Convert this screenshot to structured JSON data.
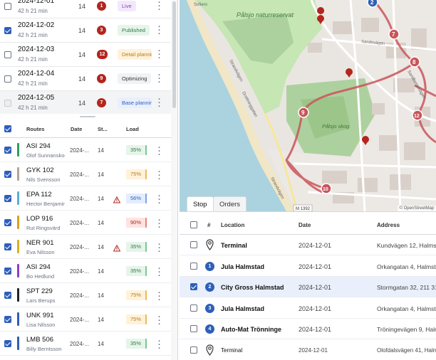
{
  "plans": [
    {
      "date": "2024-12-01",
      "duration": "42 h 21 min",
      "count": "14",
      "badge": "1",
      "status": "Live",
      "status_kind": "live",
      "checked": false,
      "disabled": false
    },
    {
      "date": "2024-12-02",
      "duration": "42 h 21 min",
      "count": "14",
      "badge": "3",
      "status": "Published",
      "status_kind": "pub",
      "checked": true,
      "disabled": false
    },
    {
      "date": "2024-12-03",
      "duration": "42 h 21 min",
      "count": "14",
      "badge": "12",
      "status": "Detail planning",
      "status_kind": "detail",
      "checked": false,
      "disabled": false
    },
    {
      "date": "2024-12-04",
      "duration": "42 h 21 min",
      "count": "14",
      "badge": "9",
      "status": "Optimizing",
      "status_kind": "opt",
      "checked": false,
      "disabled": false
    },
    {
      "date": "2024-12-05",
      "duration": "42 h 21 min",
      "count": "14",
      "badge": "7",
      "status": "Base planning",
      "status_kind": "base",
      "checked": false,
      "disabled": true
    }
  ],
  "routes_header": {
    "routes": "Routes",
    "date": "Date",
    "stops": "St...",
    "load": "Load"
  },
  "routes": [
    {
      "name": "ASI 294",
      "driver": "Olof Sunnanskog",
      "date": "2024-12-01",
      "stops": "14",
      "load": "35%",
      "load_kind": "green",
      "color": "#2e9e5b",
      "warning": false
    },
    {
      "name": "GYK 102",
      "driver": "Nils Svensson",
      "date": "2024-12-01",
      "stops": "14",
      "load": "75%",
      "load_kind": "amber",
      "color": "#b0a49a",
      "warning": false
    },
    {
      "name": "EPA 112",
      "driver": "Hector Benjaminsson",
      "date": "2024-12-01",
      "stops": "14",
      "load": "56%",
      "load_kind": "blue",
      "color": "#5aaed8",
      "warning": true
    },
    {
      "name": "LOP 916",
      "driver": "Rut Ringsvärd",
      "date": "2024-12-01",
      "stops": "14",
      "load": "90%",
      "load_kind": "red",
      "color": "#d6a21e",
      "warning": false
    },
    {
      "name": "NER 901",
      "driver": "Eva Nilsson",
      "date": "2024-12-01",
      "stops": "14",
      "load": "35%",
      "load_kind": "green",
      "color": "#d8b21e",
      "warning": true
    },
    {
      "name": "ASI 294",
      "driver": "Bo Hedlund",
      "date": "2024-12-01",
      "stops": "14",
      "load": "35%",
      "load_kind": "green",
      "color": "#8a3fc9",
      "warning": false
    },
    {
      "name": "SPT 229",
      "driver": "Lars Berups",
      "date": "2024-12-01",
      "stops": "14",
      "load": "75%",
      "load_kind": "amber",
      "color": "#1f2328",
      "warning": false
    },
    {
      "name": "UNK 991",
      "driver": "Lisa Nilsson",
      "date": "2024-12-01",
      "stops": "14",
      "load": "75%",
      "load_kind": "amber",
      "color": "#2f5fb8",
      "warning": false
    },
    {
      "name": "LMB 506",
      "driver": "Billy Berntsson",
      "date": "2024-12-01",
      "stops": "14",
      "load": "35%",
      "load_kind": "green",
      "color": "#2f5fb8",
      "warning": false
    }
  ],
  "map": {
    "labels": {
      "reserve": "Pålsjo naturreservat",
      "forest": "Pålsjo skog",
      "road1": "Strandvägen",
      "road2": "Drottninggatan",
      "road3": "Sandsvägen",
      "road4": "Strandvägen",
      "road5": "Sandbergsvägen",
      "road6": "Sofiero"
    },
    "shields": {
      "a": "M 1392",
      "b": "M 1392"
    },
    "markers": [
      "2",
      "7",
      "8",
      "9",
      "10",
      "12"
    ],
    "attribution": "© OpenStreetMap"
  },
  "tabs": [
    {
      "label": "Stop",
      "active": true
    },
    {
      "label": "Orders",
      "active": false
    }
  ],
  "stops_header": {
    "num": "#",
    "location": "Location",
    "date": "Date",
    "address": "Address"
  },
  "stops": [
    {
      "type": "pin",
      "num": "",
      "location": "Terminal",
      "date": "2024-12-01",
      "address": "Kundvägen 12, Halmstad",
      "selected": false,
      "checked": false
    },
    {
      "type": "num",
      "num": "1",
      "location": "Jula Halmstad",
      "date": "2024-12-01",
      "address": "Orkangatan 4, Halmstad",
      "selected": false,
      "checked": false
    },
    {
      "type": "num",
      "num": "2",
      "location": "City Gross Halmstad",
      "date": "2024-12-01",
      "address": "Stormgatan 32, 211 31",
      "selected": true,
      "checked": true
    },
    {
      "type": "num",
      "num": "3",
      "location": "Jula Halmstad",
      "date": "2024-12-01",
      "address": "Orkangatan 4, Halmstad",
      "selected": false,
      "checked": false
    },
    {
      "type": "num",
      "num": "4",
      "location": "Auto-Mat Trönninge",
      "date": "2024-12-01",
      "address": "Tröningevägen 9, Halmstad",
      "selected": false,
      "checked": false
    },
    {
      "type": "pin",
      "num": "",
      "location": "Terminal",
      "date": "2024-12-01",
      "address": "Olofdalsvägen 41, Halmstad",
      "selected": false,
      "checked": false
    }
  ]
}
